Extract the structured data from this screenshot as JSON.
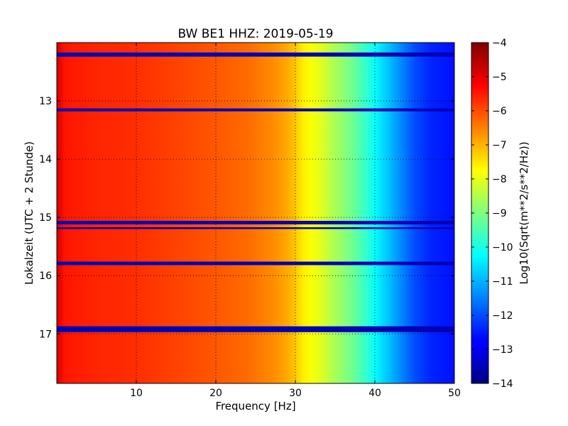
{
  "chart_data": {
    "type": "heatmap",
    "title": "BW BE1 HHZ: 2019-05-19",
    "xlabel": "Frequency [Hz]",
    "ylabel": "Lokalzeit (UTC + 2 Stunde)",
    "colorbar_label": "Log10(Sqrt(m**2/s**2/Hz))",
    "xlim": [
      0,
      50
    ],
    "ylim": [
      12,
      17.85
    ],
    "y_inverted": true,
    "x_ticks": [
      10,
      20,
      30,
      40,
      50
    ],
    "y_ticks": [
      13,
      14,
      15,
      16,
      17
    ],
    "x_tick_labels": [
      "10",
      "20",
      "30",
      "40",
      "50"
    ],
    "y_tick_labels": [
      "13",
      "14",
      "15",
      "16",
      "17"
    ],
    "colorbar_range": [
      -14,
      -4
    ],
    "colorbar_ticks": [
      -4,
      -5,
      -6,
      -7,
      -8,
      -9,
      -10,
      -11,
      -12,
      -13,
      -14
    ],
    "colorbar_tick_labels": [
      "−4",
      "−5",
      "−6",
      "−7",
      "−8",
      "−9",
      "−10",
      "−11",
      "−12",
      "−13",
      "−14"
    ],
    "colormap": "jet",
    "grid": true,
    "spectral_profile": {
      "frequency_hz": [
        0,
        0.5,
        2,
        5,
        10,
        15,
        20,
        24,
        27,
        29.5,
        31,
        33,
        35,
        37,
        39,
        41,
        43,
        45,
        47,
        50
      ],
      "log10_amplitude": [
        -4.8,
        -5.4,
        -5.5,
        -5.6,
        -5.7,
        -5.9,
        -6.1,
        -6.3,
        -6.6,
        -7.0,
        -7.6,
        -8.0,
        -8.6,
        -9.1,
        -9.8,
        -10.6,
        -11.3,
        -12.0,
        -12.4,
        -12.6
      ]
    },
    "low_level_bands": [
      {
        "start_hour": 12.17,
        "end_hour": 12.24,
        "log10_amplitude": -13.5
      },
      {
        "start_hour": 13.13,
        "end_hour": 13.18,
        "log10_amplitude": -13.5
      },
      {
        "start_hour": 15.06,
        "end_hour": 15.12,
        "log10_amplitude": -13.5
      },
      {
        "start_hour": 15.17,
        "end_hour": 15.2,
        "log10_amplitude": -13.5
      },
      {
        "start_hour": 15.76,
        "end_hour": 15.82,
        "log10_amplitude": -13.5
      },
      {
        "start_hour": 16.87,
        "end_hour": 16.97,
        "log10_amplitude": -13.5
      }
    ]
  }
}
